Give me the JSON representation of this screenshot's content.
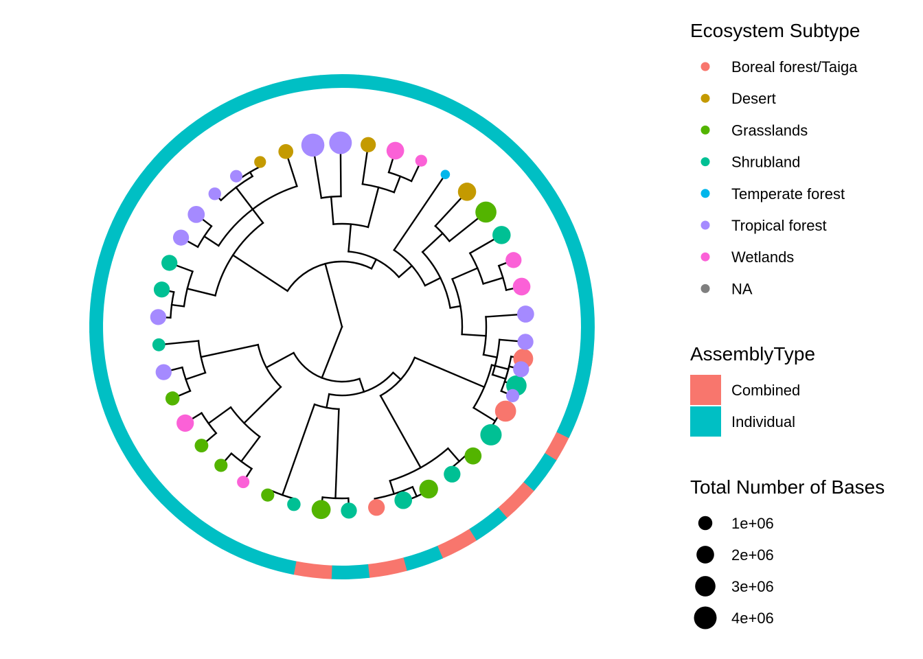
{
  "legends": {
    "ecosystem": {
      "title": "Ecosystem Subtype",
      "items": [
        {
          "label": "Boreal forest/Taiga",
          "color": "#F8766D"
        },
        {
          "label": "Desert",
          "color": "#C49A00"
        },
        {
          "label": "Grasslands",
          "color": "#53B400"
        },
        {
          "label": "Shrubland",
          "color": "#00C094"
        },
        {
          "label": "Temperate forest",
          "color": "#00B6EB"
        },
        {
          "label": "Tropical forest",
          "color": "#A58AFF"
        },
        {
          "label": "Wetlands",
          "color": "#FB61D7"
        },
        {
          "label": "NA",
          "color": "#7F7F7F"
        }
      ]
    },
    "assembly": {
      "title": "AssemblyType",
      "items": [
        {
          "label": "Combined",
          "color": "#F8766D"
        },
        {
          "label": "Individual",
          "color": "#00BFC4"
        }
      ]
    },
    "bases": {
      "title": "Total Number of Bases",
      "items": [
        {
          "label": "1e+06",
          "value": 1000000
        },
        {
          "label": "2e+06",
          "value": 2000000
        },
        {
          "label": "3e+06",
          "value": 3000000
        },
        {
          "label": "4e+06",
          "value": 4000000
        }
      ]
    }
  },
  "chart_data": {
    "type": "circular-tree",
    "open_angle_start_deg": 6,
    "open_angle_end_deg": 26,
    "tips": [
      {
        "subtype": "Boreal forest/Taiga",
        "bases": 2800000,
        "assembly": "Combined"
      },
      {
        "subtype": "Shrubland",
        "bases": 3000000,
        "assembly": "Individual"
      },
      {
        "subtype": "Boreal forest/Taiga",
        "bases": 3300000,
        "assembly": "Combined"
      },
      {
        "subtype": "Shrubland",
        "bases": 3400000,
        "assembly": "Individual"
      },
      {
        "subtype": "Grasslands",
        "bases": 1800000,
        "assembly": "Combined"
      },
      {
        "subtype": "Shrubland",
        "bases": 1700000,
        "assembly": "Individual"
      },
      {
        "subtype": "Grasslands",
        "bases": 2400000,
        "assembly": "Combined"
      },
      {
        "subtype": "Shrubland",
        "bases": 2000000,
        "assembly": "Individual"
      },
      {
        "subtype": "Boreal forest/Taiga",
        "bases": 1700000,
        "assembly": "Combined"
      },
      {
        "subtype": "Shrubland",
        "bases": 1500000,
        "assembly": "Individual"
      },
      {
        "subtype": "Grasslands",
        "bases": 2500000,
        "assembly": "Combined"
      },
      {
        "subtype": "Shrubland",
        "bases": 850000,
        "assembly": "Individual"
      },
      {
        "subtype": "Grasslands",
        "bases": 800000,
        "assembly": "Individual"
      },
      {
        "subtype": "Wetlands",
        "bases": 650000,
        "assembly": "Individual"
      },
      {
        "subtype": "Grasslands",
        "bases": 800000,
        "assembly": "Individual"
      },
      {
        "subtype": "Grasslands",
        "bases": 900000,
        "assembly": "Individual"
      },
      {
        "subtype": "Wetlands",
        "bases": 1900000,
        "assembly": "Individual"
      },
      {
        "subtype": "Grasslands",
        "bases": 1000000,
        "assembly": "Individual"
      },
      {
        "subtype": "Tropical forest",
        "bases": 1500000,
        "assembly": "Individual"
      },
      {
        "subtype": "Shrubland",
        "bases": 750000,
        "assembly": "Individual"
      },
      {
        "subtype": "Tropical forest",
        "bases": 1500000,
        "assembly": "Individual"
      },
      {
        "subtype": "Shrubland",
        "bases": 1500000,
        "assembly": "Individual"
      },
      {
        "subtype": "Shrubland",
        "bases": 1500000,
        "assembly": "Individual"
      },
      {
        "subtype": "Tropical forest",
        "bases": 1500000,
        "assembly": "Individual"
      },
      {
        "subtype": "Tropical forest",
        "bases": 1800000,
        "assembly": "Individual"
      },
      {
        "subtype": "Tropical forest",
        "bases": 700000,
        "assembly": "Individual"
      },
      {
        "subtype": "Tropical forest",
        "bases": 650000,
        "assembly": "Individual"
      },
      {
        "subtype": "Desert",
        "bases": 550000,
        "assembly": "Individual"
      },
      {
        "subtype": "Desert",
        "bases": 1200000,
        "assembly": "Individual"
      },
      {
        "subtype": "Tropical forest",
        "bases": 4200000,
        "assembly": "Individual"
      },
      {
        "subtype": "Tropical forest",
        "bases": 4000000,
        "assembly": "Individual"
      },
      {
        "subtype": "Desert",
        "bases": 1300000,
        "assembly": "Individual"
      },
      {
        "subtype": "Wetlands",
        "bases": 2000000,
        "assembly": "Individual"
      },
      {
        "subtype": "Wetlands",
        "bases": 550000,
        "assembly": "Individual"
      },
      {
        "subtype": "Temperate forest",
        "bases": 200000,
        "assembly": "Individual"
      },
      {
        "subtype": "Desert",
        "bases": 2200000,
        "assembly": "Individual"
      },
      {
        "subtype": "Grasslands",
        "bases": 3300000,
        "assembly": "Individual"
      },
      {
        "subtype": "Shrubland",
        "bases": 2200000,
        "assembly": "Individual"
      },
      {
        "subtype": "Wetlands",
        "bases": 1500000,
        "assembly": "Individual"
      },
      {
        "subtype": "Wetlands",
        "bases": 2000000,
        "assembly": "Individual"
      },
      {
        "subtype": "Tropical forest",
        "bases": 1800000,
        "assembly": "Individual"
      },
      {
        "subtype": "Tropical forest",
        "bases": 1500000,
        "assembly": "Individual"
      },
      {
        "subtype": "Tropical forest",
        "bases": 1500000,
        "assembly": "Individual"
      },
      {
        "subtype": "Tropical forest",
        "bases": 800000,
        "assembly": "Individual"
      }
    ]
  }
}
